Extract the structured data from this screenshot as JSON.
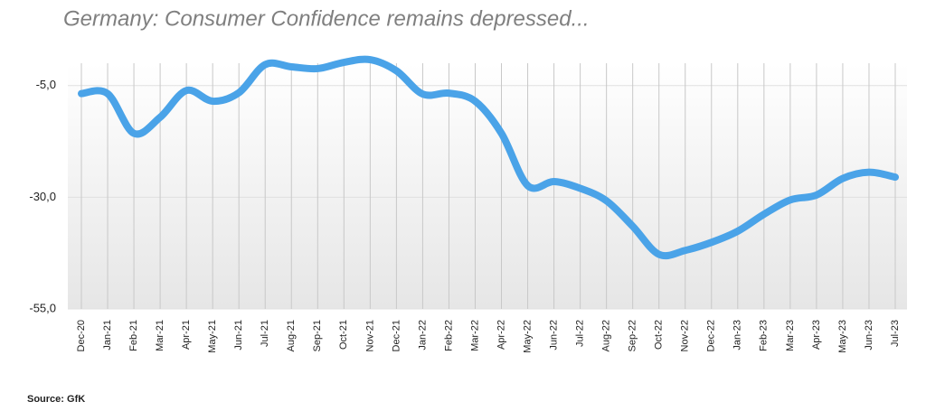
{
  "chart_data": {
    "type": "line",
    "title": "Germany: Consumer Confidence remains depressed...",
    "source": "Source: GfK",
    "categories": [
      "Dec-20",
      "Jan-21",
      "Feb-21",
      "Mar-21",
      "Apr-21",
      "May-21",
      "Jun-21",
      "Jul-21",
      "Aug-21",
      "Sep-21",
      "Oct-21",
      "Nov-21",
      "Dec-21",
      "Jan-22",
      "Feb-22",
      "Mar-22",
      "Apr-22",
      "May-22",
      "Jun-22",
      "Jul-22",
      "Aug-22",
      "Sep-22",
      "Oct-22",
      "Nov-22",
      "Dec-22",
      "Jan-23",
      "Feb-23",
      "Mar-23",
      "Apr-23",
      "May-23",
      "Jun-23",
      "Jul-23"
    ],
    "series": [
      {
        "name": "Consumer Confidence",
        "color": "#4aa3e8",
        "values": [
          -6.8,
          -6.8,
          -15.7,
          -12.1,
          -6.1,
          -8.5,
          -6.6,
          -0.3,
          -0.8,
          -1.2,
          0.2,
          0.8,
          -1.7,
          -6.9,
          -6.7,
          -8.5,
          -15.7,
          -27.4,
          -26.5,
          -28.0,
          -30.8,
          -36.5,
          -42.8,
          -41.9,
          -40.1,
          -37.6,
          -33.8,
          -30.6,
          -29.5,
          -25.8,
          -24.4,
          -25.5
        ]
      }
    ],
    "ylim": [
      -55,
      0
    ],
    "yticks": [
      {
        "value": -5,
        "label": "-5,0"
      },
      {
        "value": -30,
        "label": "-30,0"
      },
      {
        "value": -55,
        "label": "-55,0"
      }
    ],
    "grid": true
  }
}
